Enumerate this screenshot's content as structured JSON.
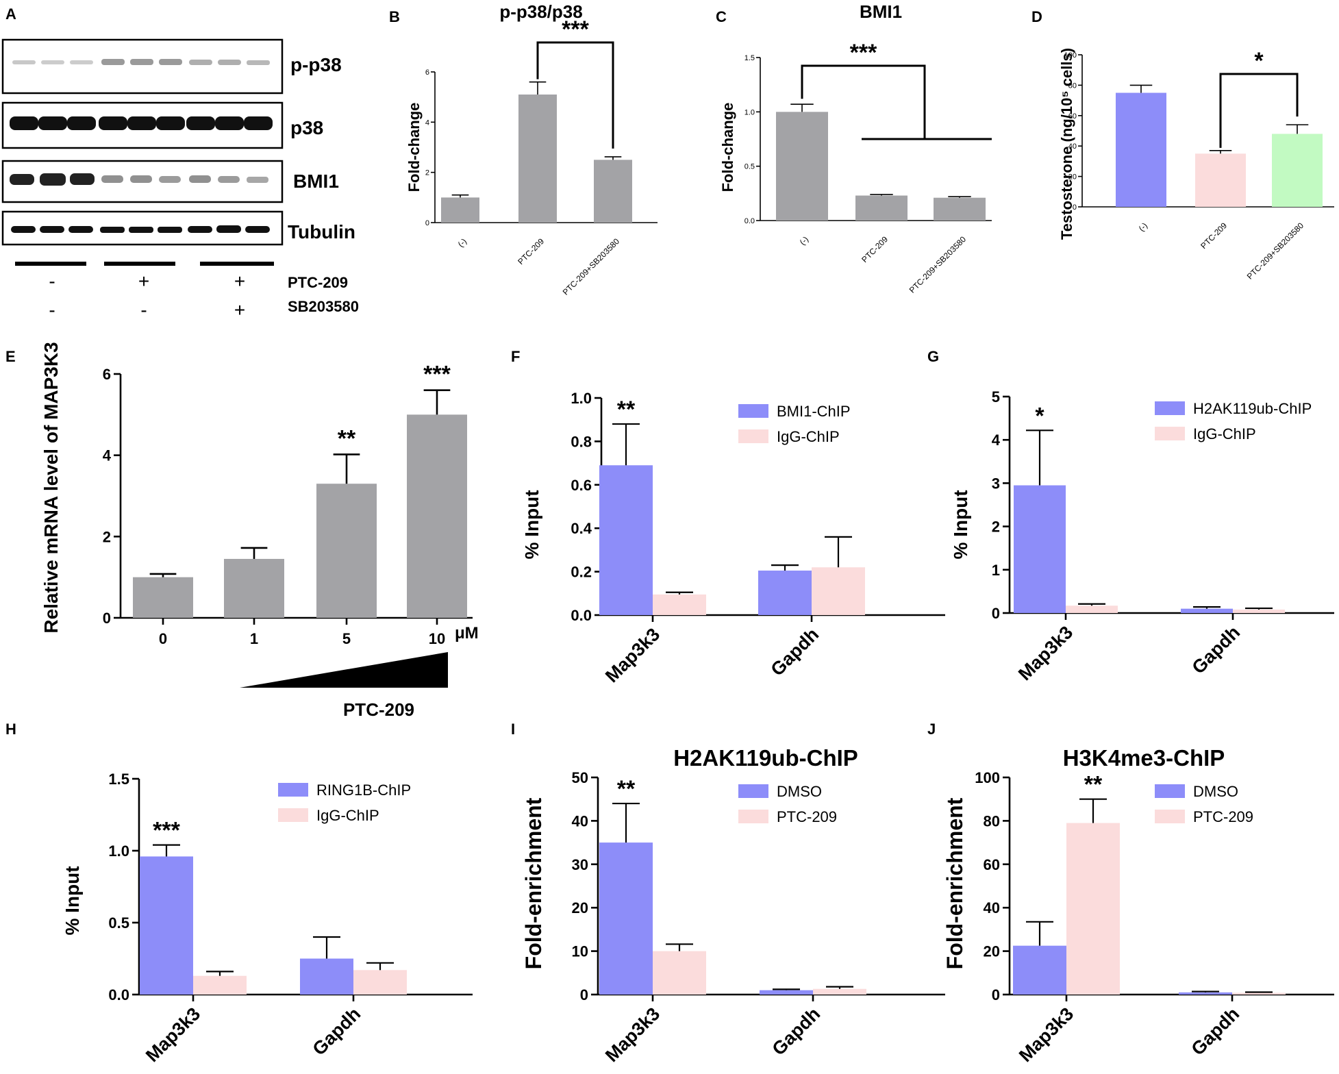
{
  "colors": {
    "gray": "#a3a3a6",
    "blue": "#8d8df9",
    "pink": "#fbdcdc",
    "green": "#c2fac2",
    "ink": "#000000"
  },
  "panel_a": {
    "letter": "A",
    "bands": [
      "p-p38",
      "p38",
      "BMI1",
      "Tubulin"
    ],
    "row1": {
      "label": "PTC-209",
      "marks": [
        "-",
        "+",
        "+"
      ]
    },
    "row2": {
      "label": "SB203580",
      "marks": [
        "-",
        "-",
        "+"
      ]
    }
  },
  "chart_data": [
    {
      "id": "B",
      "letter": "B",
      "type": "bar",
      "title": "p-p38/p38",
      "xlabel": "",
      "ylabel": "Fold-change",
      "categories": [
        "(-)",
        "PTC-209",
        "PTC-209+SB203580"
      ],
      "values": [
        1.0,
        5.1,
        2.5
      ],
      "errors": [
        0.1,
        0.5,
        0.12
      ],
      "ylim": [
        0,
        6
      ],
      "yticks": [
        0,
        2,
        4,
        6
      ],
      "significance": [
        {
          "from": 1,
          "to": 2,
          "label": "***"
        }
      ]
    },
    {
      "id": "C",
      "letter": "C",
      "type": "bar",
      "title": "BMI1",
      "xlabel": "",
      "ylabel": "Fold-change",
      "categories": [
        "(-)",
        "PTC-209",
        "PTC-209+SB203580"
      ],
      "values": [
        1.0,
        0.23,
        0.21
      ],
      "errors": [
        0.07,
        0.01,
        0.01
      ],
      "ylim": [
        0,
        1.5
      ],
      "yticks": [
        0.0,
        0.5,
        1.0,
        1.5
      ],
      "significance": [
        {
          "from": 0,
          "to_group": [
            1,
            2
          ],
          "label": "***"
        }
      ]
    },
    {
      "id": "D",
      "letter": "D",
      "type": "bar",
      "title": "",
      "xlabel": "",
      "ylabel": "Testosterone (ng/10⁵ cells)",
      "categories": [
        "(-)",
        "PTC-209",
        "PTC-209+SB203580"
      ],
      "values": [
        75,
        35,
        48
      ],
      "errors": [
        5,
        2,
        6
      ],
      "ylim": [
        0,
        100
      ],
      "yticks": [
        0,
        20,
        40,
        60,
        80,
        100
      ],
      "significance": [
        {
          "from": 1,
          "to": 2,
          "label": "*"
        }
      ]
    },
    {
      "id": "E",
      "letter": "E",
      "type": "bar",
      "title": "",
      "xlabel": "PTC-209",
      "ylabel": "Relative mRNA level of MAP3K3",
      "categories": [
        "0",
        "1",
        "5",
        "10"
      ],
      "unit": "μM",
      "values": [
        1.0,
        1.45,
        3.3,
        5.0
      ],
      "errors": [
        0.08,
        0.27,
        0.72,
        0.6
      ],
      "stars": [
        "",
        "",
        "**",
        "***"
      ],
      "ylim": [
        0,
        6
      ],
      "yticks": [
        0,
        2,
        4,
        6
      ]
    },
    {
      "id": "F",
      "letter": "F",
      "type": "bar",
      "title": "",
      "xlabel": "",
      "ylabel": "% Input",
      "categories": [
        "Map3k3",
        "Gapdh"
      ],
      "series": [
        {
          "name": "BMI1-ChIP",
          "values": [
            0.69,
            0.205
          ],
          "errors": [
            0.19,
            0.025
          ]
        },
        {
          "name": "IgG-ChIP",
          "values": [
            0.095,
            0.22
          ],
          "errors": [
            0.01,
            0.14
          ]
        }
      ],
      "stars": [
        "**",
        ""
      ],
      "ylim": [
        0,
        1.0
      ],
      "yticks": [
        0.0,
        0.2,
        0.4,
        0.6,
        0.8,
        1.0
      ]
    },
    {
      "id": "G",
      "letter": "G",
      "type": "bar",
      "title": "",
      "xlabel": "",
      "ylabel": "% Input",
      "categories": [
        "Map3k3",
        "Gapdh"
      ],
      "series": [
        {
          "name": "H2AK119ub-ChIP",
          "values": [
            2.95,
            0.1
          ],
          "errors": [
            1.27,
            0.04
          ]
        },
        {
          "name": "IgG-ChIP",
          "values": [
            0.17,
            0.08
          ],
          "errors": [
            0.04,
            0.03
          ]
        }
      ],
      "stars": [
        "*",
        ""
      ],
      "ylim": [
        0,
        5
      ],
      "yticks": [
        0,
        1,
        2,
        3,
        4,
        5
      ]
    },
    {
      "id": "H",
      "letter": "H",
      "type": "bar",
      "title": "",
      "xlabel": "",
      "ylabel": "% Input",
      "categories": [
        "Map3k3",
        "Gapdh"
      ],
      "series": [
        {
          "name": "RING1B-ChIP",
          "values": [
            0.96,
            0.25
          ],
          "errors": [
            0.08,
            0.15
          ]
        },
        {
          "name": "IgG-ChIP",
          "values": [
            0.13,
            0.17
          ],
          "errors": [
            0.03,
            0.05
          ]
        }
      ],
      "stars": [
        "***",
        ""
      ],
      "ylim": [
        0,
        1.5
      ],
      "yticks": [
        0.0,
        0.5,
        1.0,
        1.5
      ]
    },
    {
      "id": "I",
      "letter": "I",
      "type": "bar",
      "title": "H2AK119ub-ChIP",
      "xlabel": "",
      "ylabel": "Fold-enrichment",
      "categories": [
        "Map3k3",
        "Gapdh"
      ],
      "series": [
        {
          "name": "DMSO",
          "values": [
            35,
            1.0
          ],
          "errors": [
            9,
            0.2
          ]
        },
        {
          "name": "PTC-209",
          "values": [
            10,
            1.3
          ],
          "errors": [
            1.6,
            0.5
          ]
        }
      ],
      "stars": [
        "**",
        ""
      ],
      "ylim": [
        0,
        50
      ],
      "yticks": [
        0,
        10,
        20,
        30,
        40,
        50
      ]
    },
    {
      "id": "J",
      "letter": "J",
      "type": "bar",
      "title": "H3K4me3-ChIP",
      "xlabel": "",
      "ylabel": "Fold-enrichment",
      "categories": [
        "Map3k3",
        "Gapdh"
      ],
      "series": [
        {
          "name": "DMSO",
          "values": [
            22.5,
            1.0
          ],
          "errors": [
            11,
            0.4
          ]
        },
        {
          "name": "PTC-209",
          "values": [
            79,
            0.8
          ],
          "errors": [
            11,
            0.3
          ]
        }
      ],
      "stars": [
        "**",
        ""
      ],
      "ylim": [
        0,
        100
      ],
      "yticks": [
        0,
        20,
        40,
        60,
        80,
        100
      ]
    }
  ]
}
